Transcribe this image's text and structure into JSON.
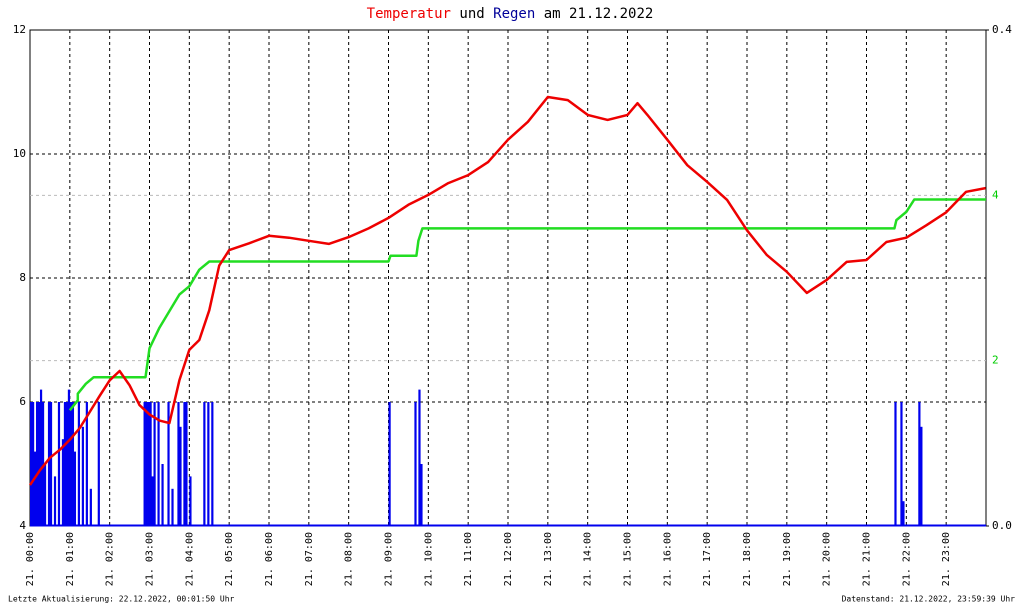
{
  "chart_data": {
    "type": "line",
    "title_parts": [
      {
        "text": "Temperatur",
        "color": "#ee0000"
      },
      {
        "text": "und",
        "color": "#000000"
      },
      {
        "text": "Regen",
        "color": "#000099"
      },
      {
        "text": "am 21.12.2022",
        "color": "#000000"
      }
    ],
    "footer_left": "Letzte Aktualisierung: 22.12.2022, 00:01:50 Uhr",
    "footer_right": "Datenstand: 21.12.2022, 23:59:39 Uhr",
    "xlim": [
      0,
      24
    ],
    "xticks": [
      {
        "value": 0,
        "label": "21. 00:00"
      },
      {
        "value": 1,
        "label": "21. 01:00"
      },
      {
        "value": 2,
        "label": "21. 02:00"
      },
      {
        "value": 3,
        "label": "21. 03:00"
      },
      {
        "value": 4,
        "label": "21. 04:00"
      },
      {
        "value": 5,
        "label": "21. 05:00"
      },
      {
        "value": 6,
        "label": "21. 06:00"
      },
      {
        "value": 7,
        "label": "21. 07:00"
      },
      {
        "value": 8,
        "label": "21. 08:00"
      },
      {
        "value": 9,
        "label": "21. 09:00"
      },
      {
        "value": 10,
        "label": "21. 10:00"
      },
      {
        "value": 11,
        "label": "21. 11:00"
      },
      {
        "value": 12,
        "label": "21. 12:00"
      },
      {
        "value": 13,
        "label": "21. 13:00"
      },
      {
        "value": 14,
        "label": "21. 14:00"
      },
      {
        "value": 15,
        "label": "21. 15:00"
      },
      {
        "value": 16,
        "label": "21. 16:00"
      },
      {
        "value": 17,
        "label": "21. 17:00"
      },
      {
        "value": 18,
        "label": "21. 18:00"
      },
      {
        "value": 19,
        "label": "21. 19:00"
      },
      {
        "value": 20,
        "label": "21. 20:00"
      },
      {
        "value": 21,
        "label": "21. 21:00"
      },
      {
        "value": 22,
        "label": "21. 22:00"
      },
      {
        "value": 23,
        "label": "21. 23:00"
      }
    ],
    "ylim": [
      4,
      12
    ],
    "yticks": [
      4,
      6,
      8,
      10,
      12
    ],
    "y2lim": [
      0,
      0.4
    ],
    "y2ticks": [
      {
        "value": 0,
        "label": "0.0"
      },
      {
        "value": 0.4,
        "label": "0.4"
      }
    ],
    "y3lim": [
      0,
      6
    ],
    "y3ticks": [
      2,
      4
    ],
    "y3color": "#00cc00",
    "grid": true,
    "series": [
      {
        "type": "bar",
        "axis": "y2",
        "color": "#0000ee",
        "x": [
          0.0,
          0.05,
          0.1,
          0.15,
          0.2,
          0.25,
          0.3,
          0.35,
          0.45,
          0.5,
          0.6,
          0.7,
          0.8,
          0.85,
          0.9,
          0.95,
          1.0,
          1.05,
          1.1,
          1.2,
          1.3,
          1.4,
          1.5,
          1.7,
          2.85,
          2.9,
          2.95,
          3.0,
          3.05,
          3.1,
          3.2,
          3.3,
          3.45,
          3.55,
          3.7,
          3.75,
          3.85,
          3.9,
          4.0,
          4.35,
          4.45,
          4.55,
          9.0,
          9.65,
          9.75,
          9.8,
          21.7,
          21.85,
          21.9,
          22.3,
          22.35
        ],
        "values": [
          0.1,
          0.1,
          0.06,
          0.1,
          0.1,
          0.11,
          0.1,
          0.05,
          0.1,
          0.1,
          0.04,
          0.1,
          0.07,
          0.1,
          0.1,
          0.11,
          0.1,
          0.1,
          0.06,
          0.1,
          0.08,
          0.1,
          0.03,
          0.1,
          0.1,
          0.1,
          0.1,
          0.1,
          0.04,
          0.1,
          0.1,
          0.05,
          0.1,
          0.03,
          0.1,
          0.08,
          0.1,
          0.1,
          0.04,
          0.1,
          0.1,
          0.1,
          0.1,
          0.1,
          0.11,
          0.05,
          0.1,
          0.1,
          0.02,
          0.1,
          0.08
        ]
      },
      {
        "type": "line",
        "axis": "y3",
        "color": "#22dd22",
        "x": [
          1.0,
          1.2,
          1.2,
          1.4,
          1.6,
          2.9,
          3.0,
          3.25,
          3.5,
          3.75,
          4.0,
          4.25,
          4.5,
          9.0,
          9.05,
          9.7,
          9.75,
          9.85,
          21.7,
          21.75,
          22.0,
          22.2,
          24.0
        ],
        "values": [
          1.4,
          1.52,
          1.6,
          1.72,
          1.8,
          1.8,
          2.15,
          2.4,
          2.6,
          2.8,
          2.9,
          3.1,
          3.2,
          3.2,
          3.27,
          3.27,
          3.45,
          3.6,
          3.6,
          3.7,
          3.8,
          3.95,
          3.95
        ]
      },
      {
        "type": "line",
        "axis": "y",
        "color": "#ee0000",
        "x": [
          0,
          0.25,
          0.5,
          0.75,
          1.0,
          1.25,
          1.5,
          1.75,
          2.0,
          2.25,
          2.5,
          2.75,
          3.0,
          3.25,
          3.5,
          3.75,
          4.0,
          4.25,
          4.5,
          4.75,
          5.0,
          5.5,
          6.0,
          6.5,
          7.0,
          7.5,
          8.0,
          8.5,
          9.0,
          9.5,
          10.0,
          10.5,
          11.0,
          11.5,
          12.0,
          12.5,
          13.0,
          13.5,
          14.0,
          14.5,
          15.0,
          15.25,
          15.5,
          16.0,
          16.5,
          17.0,
          17.5,
          18.0,
          18.5,
          19.0,
          19.5,
          20.0,
          20.5,
          21.0,
          21.5,
          22.0,
          22.5,
          23.0,
          23.5,
          23.99
        ],
        "values": [
          4.66,
          4.9,
          5.1,
          5.23,
          5.39,
          5.58,
          5.84,
          6.1,
          6.35,
          6.5,
          6.27,
          5.95,
          5.8,
          5.7,
          5.66,
          6.35,
          6.84,
          7.0,
          7.48,
          8.2,
          8.45,
          8.56,
          8.68,
          8.65,
          8.6,
          8.55,
          8.66,
          8.8,
          8.97,
          9.18,
          9.34,
          9.53,
          9.66,
          9.87,
          10.23,
          10.52,
          10.92,
          10.87,
          10.63,
          10.55,
          10.63,
          10.82,
          10.63,
          10.23,
          9.82,
          9.55,
          9.26,
          8.77,
          8.37,
          8.1,
          7.76,
          7.97,
          8.26,
          8.29,
          8.58,
          8.65,
          8.85,
          9.06,
          9.39,
          9.45
        ]
      }
    ]
  }
}
